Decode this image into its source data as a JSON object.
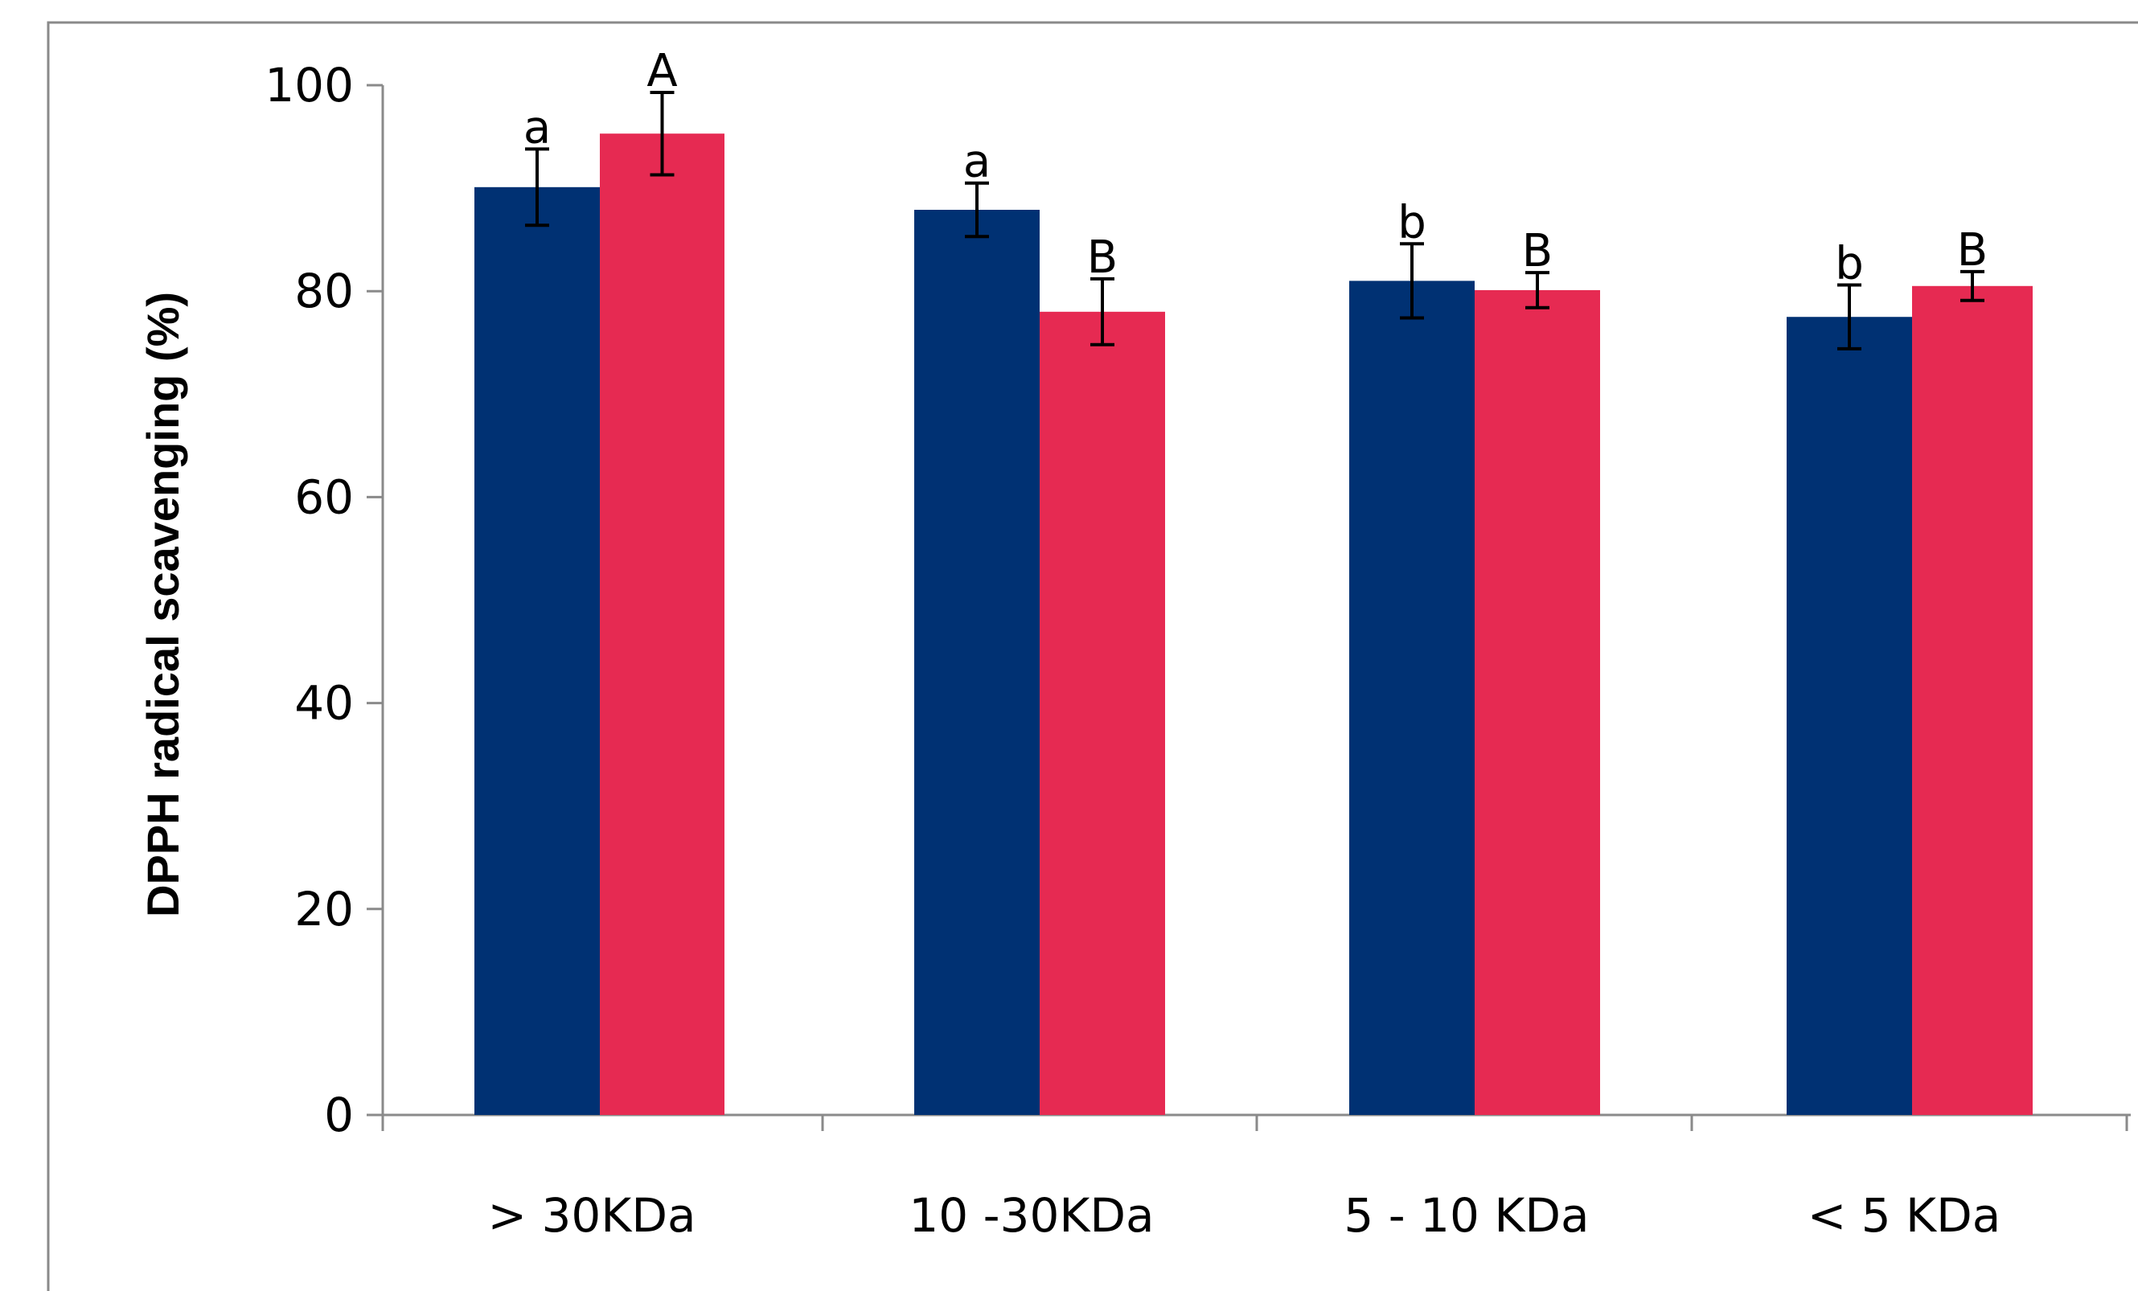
{
  "chart_data": {
    "type": "bar",
    "title": "",
    "xlabel": "",
    "ylabel": "DPPH radical  scavenging  (%)",
    "ylim": [
      0,
      100
    ],
    "yticks": [
      0,
      20,
      40,
      60,
      80,
      100
    ],
    "grid": false,
    "legend": "none",
    "categories": [
      "> 30KDa",
      "10 -30KDa",
      "5 - 10 KDa",
      "< 5 KDa"
    ],
    "series": [
      {
        "color": "#003173",
        "values": [
          90.1,
          87.9,
          81.0,
          77.5
        ],
        "errors": [
          3.7,
          2.6,
          3.6,
          3.1
        ],
        "labels": [
          "a",
          "a",
          "b",
          "b"
        ]
      },
      {
        "color": "#E62A52",
        "values": [
          95.3,
          78.0,
          80.1,
          80.5
        ],
        "errors": [
          4.0,
          3.2,
          1.7,
          1.4
        ],
        "labels": [
          "A",
          "B",
          "B",
          "B"
        ]
      }
    ]
  }
}
